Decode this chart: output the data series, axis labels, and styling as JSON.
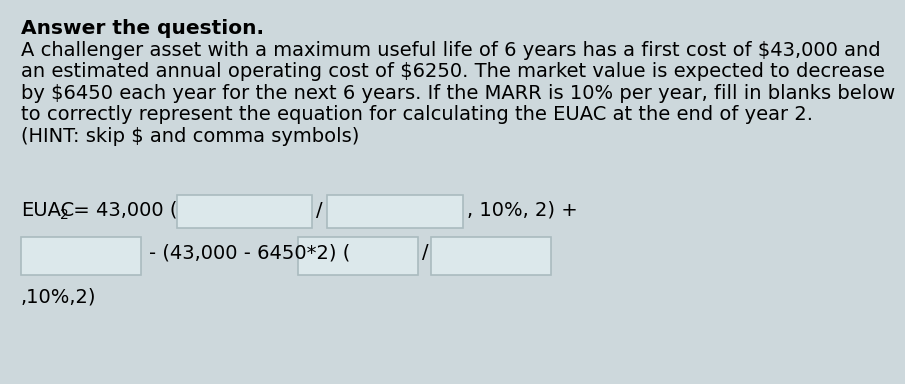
{
  "bg_color": "#cdd8dc",
  "title": "Answer the question.",
  "para_lines": [
    "A challenger asset with a maximum useful life of 6 years has a first cost of $43,000 and",
    "an estimated annual operating cost of $6250. The market value is expected to decrease",
    "by $6450 each year for the next 6 years. If the MARR is 10% per year, fill in blanks below",
    "to correctly represent the equation for calculating the EUAC at the end of year 2.",
    "(HINT: skip $ and comma symbols)"
  ],
  "font_size_title": 14.5,
  "font_size_para": 14.0,
  "font_size_eq": 14.0,
  "line3": ",10%,2)"
}
